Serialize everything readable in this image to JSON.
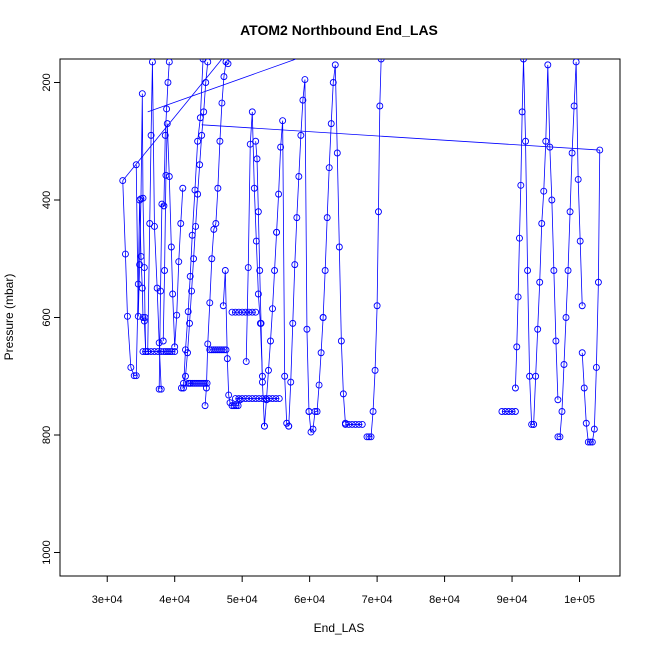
{
  "chart_data": {
    "type": "scatter",
    "title": "ATOM2 Northbound End_LAS",
    "xlabel": "End_LAS",
    "ylabel": "Pressure (mbar)",
    "xlim": [
      23000,
      106000
    ],
    "ylim": [
      1040,
      160
    ],
    "y_reversed": true,
    "grid": false,
    "x_ticks": [
      {
        "value": 30000,
        "label": "3e+04"
      },
      {
        "value": 40000,
        "label": "4e+04"
      },
      {
        "value": 50000,
        "label": "5e+04"
      },
      {
        "value": 60000,
        "label": "6e+04"
      },
      {
        "value": 70000,
        "label": "7e+04"
      },
      {
        "value": 80000,
        "label": "8e+04"
      },
      {
        "value": 90000,
        "label": "9e+04"
      },
      {
        "value": 100000,
        "label": "1e+05"
      }
    ],
    "y_ticks": [
      {
        "value": 200,
        "label": "200"
      },
      {
        "value": 400,
        "label": "400"
      },
      {
        "value": 600,
        "label": "600"
      },
      {
        "value": 800,
        "label": "800"
      },
      {
        "value": 1000,
        "label": "1000"
      }
    ],
    "color": "#0000ff",
    "series": [
      {
        "x": [
          32300,
          32700,
          33000,
          33500,
          34000,
          34300,
          34600,
          34800,
          35000,
          35200,
          35300,
          35500,
          35700
        ],
        "y": [
          367,
          492,
          598,
          685,
          699,
          699,
          543,
          400,
          496,
          550,
          600,
          606,
          658
        ]
      },
      {
        "x": [
          35700,
          35600,
          35500,
          35300,
          35200,
          35000,
          34800,
          34600,
          34300
        ],
        "y": [
          658,
          600,
          515,
          397,
          219,
          398,
          510,
          598,
          340
        ]
      },
      {
        "x": [
          35300,
          36000,
          36500,
          37000,
          37500,
          38000,
          38400,
          38700,
          39000,
          39300,
          39600,
          40000
        ],
        "y": [
          658,
          658,
          658,
          658,
          658,
          658,
          658,
          658,
          658,
          658,
          658,
          658
        ]
      },
      {
        "x": [
          36000,
          36300,
          36500,
          36700,
          37000,
          37400,
          37700,
          38000
        ],
        "y": [
          658,
          440,
          290,
          165,
          445,
          550,
          643,
          722
        ]
      },
      {
        "x": [
          37700,
          37900,
          38100,
          38400,
          38600,
          38800,
          39000,
          39200
        ],
        "y": [
          722,
          555,
          407,
          410,
          290,
          245,
          200,
          165
        ]
      },
      {
        "x": [
          38300,
          38500,
          38700,
          38900,
          39200,
          39500,
          39700,
          40000,
          40300,
          40600,
          40900,
          41200
        ],
        "y": [
          640,
          520,
          358,
          270,
          360,
          480,
          560,
          650,
          596,
          505,
          440,
          380
        ]
      },
      {
        "x": [
          41000,
          41300,
          41600,
          42000,
          42300,
          42600,
          43000,
          43400,
          43800,
          44200
        ],
        "y": [
          720,
          720,
          655,
          590,
          530,
          460,
          383,
          300,
          260,
          160
        ]
      },
      {
        "x": [
          41300,
          41600,
          41900,
          42200,
          42500,
          42800,
          43100,
          43400,
          43700,
          44000,
          44300,
          44600,
          44900
        ],
        "y": [
          712,
          700,
          660,
          610,
          555,
          500,
          445,
          390,
          340,
          290,
          250,
          200,
          165
        ]
      },
      {
        "x": [
          42000,
          42200,
          42400,
          42700,
          43000,
          43300,
          43600,
          43900,
          44200,
          44500,
          44800
        ],
        "y": [
          712,
          712,
          712,
          712,
          712,
          712,
          712,
          712,
          712,
          712,
          712
        ]
      },
      {
        "x": [
          44500,
          44700,
          44900,
          45200,
          45500,
          45800,
          46100,
          46400,
          46700,
          47000,
          47300,
          47600,
          47900
        ],
        "y": [
          750,
          720,
          645,
          575,
          500,
          450,
          440,
          380,
          300,
          235,
          190,
          165,
          168
        ]
      },
      {
        "x": [
          45200,
          45500,
          45800,
          46100,
          46400,
          46700,
          47000,
          47300,
          47600
        ],
        "y": [
          655,
          655,
          655,
          655,
          655,
          655,
          655,
          655,
          655
        ]
      },
      {
        "x": [
          47200,
          47500,
          47800,
          48000,
          48200,
          48500,
          48800,
          49100,
          49400,
          49700
        ],
        "y": [
          580,
          520,
          670,
          732,
          745,
          750,
          750,
          750,
          750,
          740
        ]
      },
      {
        "x": [
          48500,
          49000,
          49500,
          50000,
          50500,
          51000,
          51500,
          52000
        ],
        "y": [
          591,
          591,
          591,
          591,
          591,
          591,
          591,
          591
        ]
      },
      {
        "x": [
          49000,
          49500,
          50000,
          50500,
          51000,
          51500,
          52000,
          52500,
          53000,
          53500,
          54000,
          54500,
          55000,
          55500
        ],
        "y": [
          738,
          738,
          738,
          738,
          738,
          738,
          738,
          738,
          738,
          738,
          738,
          738,
          738,
          738
        ]
      },
      {
        "x": [
          50600,
          50900,
          51200,
          51500,
          51800,
          52100,
          52400,
          52700,
          53000
        ],
        "y": [
          675,
          515,
          305,
          250,
          380,
          470,
          560,
          610,
          700
        ]
      },
      {
        "x": [
          52000,
          52200,
          52400,
          52600,
          52800,
          53000,
          53300
        ],
        "y": [
          300,
          330,
          420,
          520,
          610,
          710,
          785
        ]
      },
      {
        "x": [
          53300,
          53600,
          53900,
          54200,
          54500,
          54800,
          55100
        ],
        "y": [
          785,
          740,
          690,
          640,
          585,
          520,
          455
        ]
      },
      {
        "x": [
          55100,
          55400,
          55700,
          56000,
          56300,
          56600,
          56900
        ],
        "y": [
          455,
          390,
          310,
          265,
          700,
          780,
          785
        ]
      },
      {
        "x": [
          56900,
          57200,
          57500,
          57800,
          58100,
          58400,
          58700,
          59000,
          59300,
          59600,
          59900
        ],
        "y": [
          785,
          710,
          610,
          510,
          430,
          360,
          290,
          230,
          195,
          620,
          760
        ]
      },
      {
        "x": [
          59900,
          60200,
          60500,
          60800,
          61100,
          61400,
          61700,
          62000
        ],
        "y": [
          760,
          795,
          790,
          760,
          760,
          715,
          660,
          600
        ]
      },
      {
        "x": [
          62000,
          62300,
          62600,
          62900,
          63200,
          63500,
          63800,
          64100,
          64400,
          64700,
          65000,
          65300
        ],
        "y": [
          600,
          520,
          430,
          345,
          270,
          200,
          170,
          320,
          480,
          640,
          730,
          780
        ]
      },
      {
        "x": [
          65300,
          65800,
          66300,
          66800,
          67300,
          67800
        ],
        "y": [
          782,
          782,
          782,
          782,
          782,
          782
        ]
      },
      {
        "x": [
          68500,
          68800,
          69100,
          69400,
          69700,
          70000,
          70200,
          70400,
          70600
        ],
        "y": [
          803,
          803,
          803,
          760,
          690,
          580,
          420,
          240,
          160
        ]
      },
      {
        "x": [
          88500,
          89000,
          89500,
          90000,
          90500
        ],
        "y": [
          760,
          760,
          760,
          760,
          760
        ]
      },
      {
        "x": [
          90500,
          90700,
          90900,
          91100,
          91300,
          91500,
          91700,
          92000,
          92300,
          92600,
          92900,
          93200
        ],
        "y": [
          720,
          650,
          565,
          465,
          375,
          250,
          160,
          300,
          520,
          700,
          782,
          782
        ]
      },
      {
        "x": [
          93200,
          93500,
          93800,
          94100,
          94400,
          94700,
          95000,
          95300,
          95600,
          95900,
          96200,
          96500,
          96800
        ],
        "y": [
          782,
          700,
          620,
          540,
          440,
          385,
          300,
          170,
          310,
          400,
          520,
          640,
          740
        ]
      },
      {
        "x": [
          96800,
          97100,
          97400,
          97700,
          98000,
          98300,
          98600,
          98900,
          99200,
          99500,
          99800,
          100100,
          100400
        ],
        "y": [
          803,
          803,
          760,
          680,
          600,
          520,
          420,
          320,
          240,
          165,
          365,
          470,
          580
        ]
      },
      {
        "x": [
          100400,
          100700,
          101000,
          101300,
          101600,
          101900,
          102200,
          102500,
          102800,
          103000
        ],
        "y": [
          660,
          720,
          780,
          812,
          812,
          812,
          790,
          685,
          540,
          315
        ]
      }
    ],
    "lines": [
      {
        "x": [
          32300,
          47000
        ],
        "y": [
          367,
          160
        ]
      },
      {
        "x": [
          36000,
          58000
        ],
        "y": [
          250,
          160
        ]
      },
      {
        "x": [
          44000,
          103000
        ],
        "y": [
          272,
          315
        ]
      }
    ]
  }
}
